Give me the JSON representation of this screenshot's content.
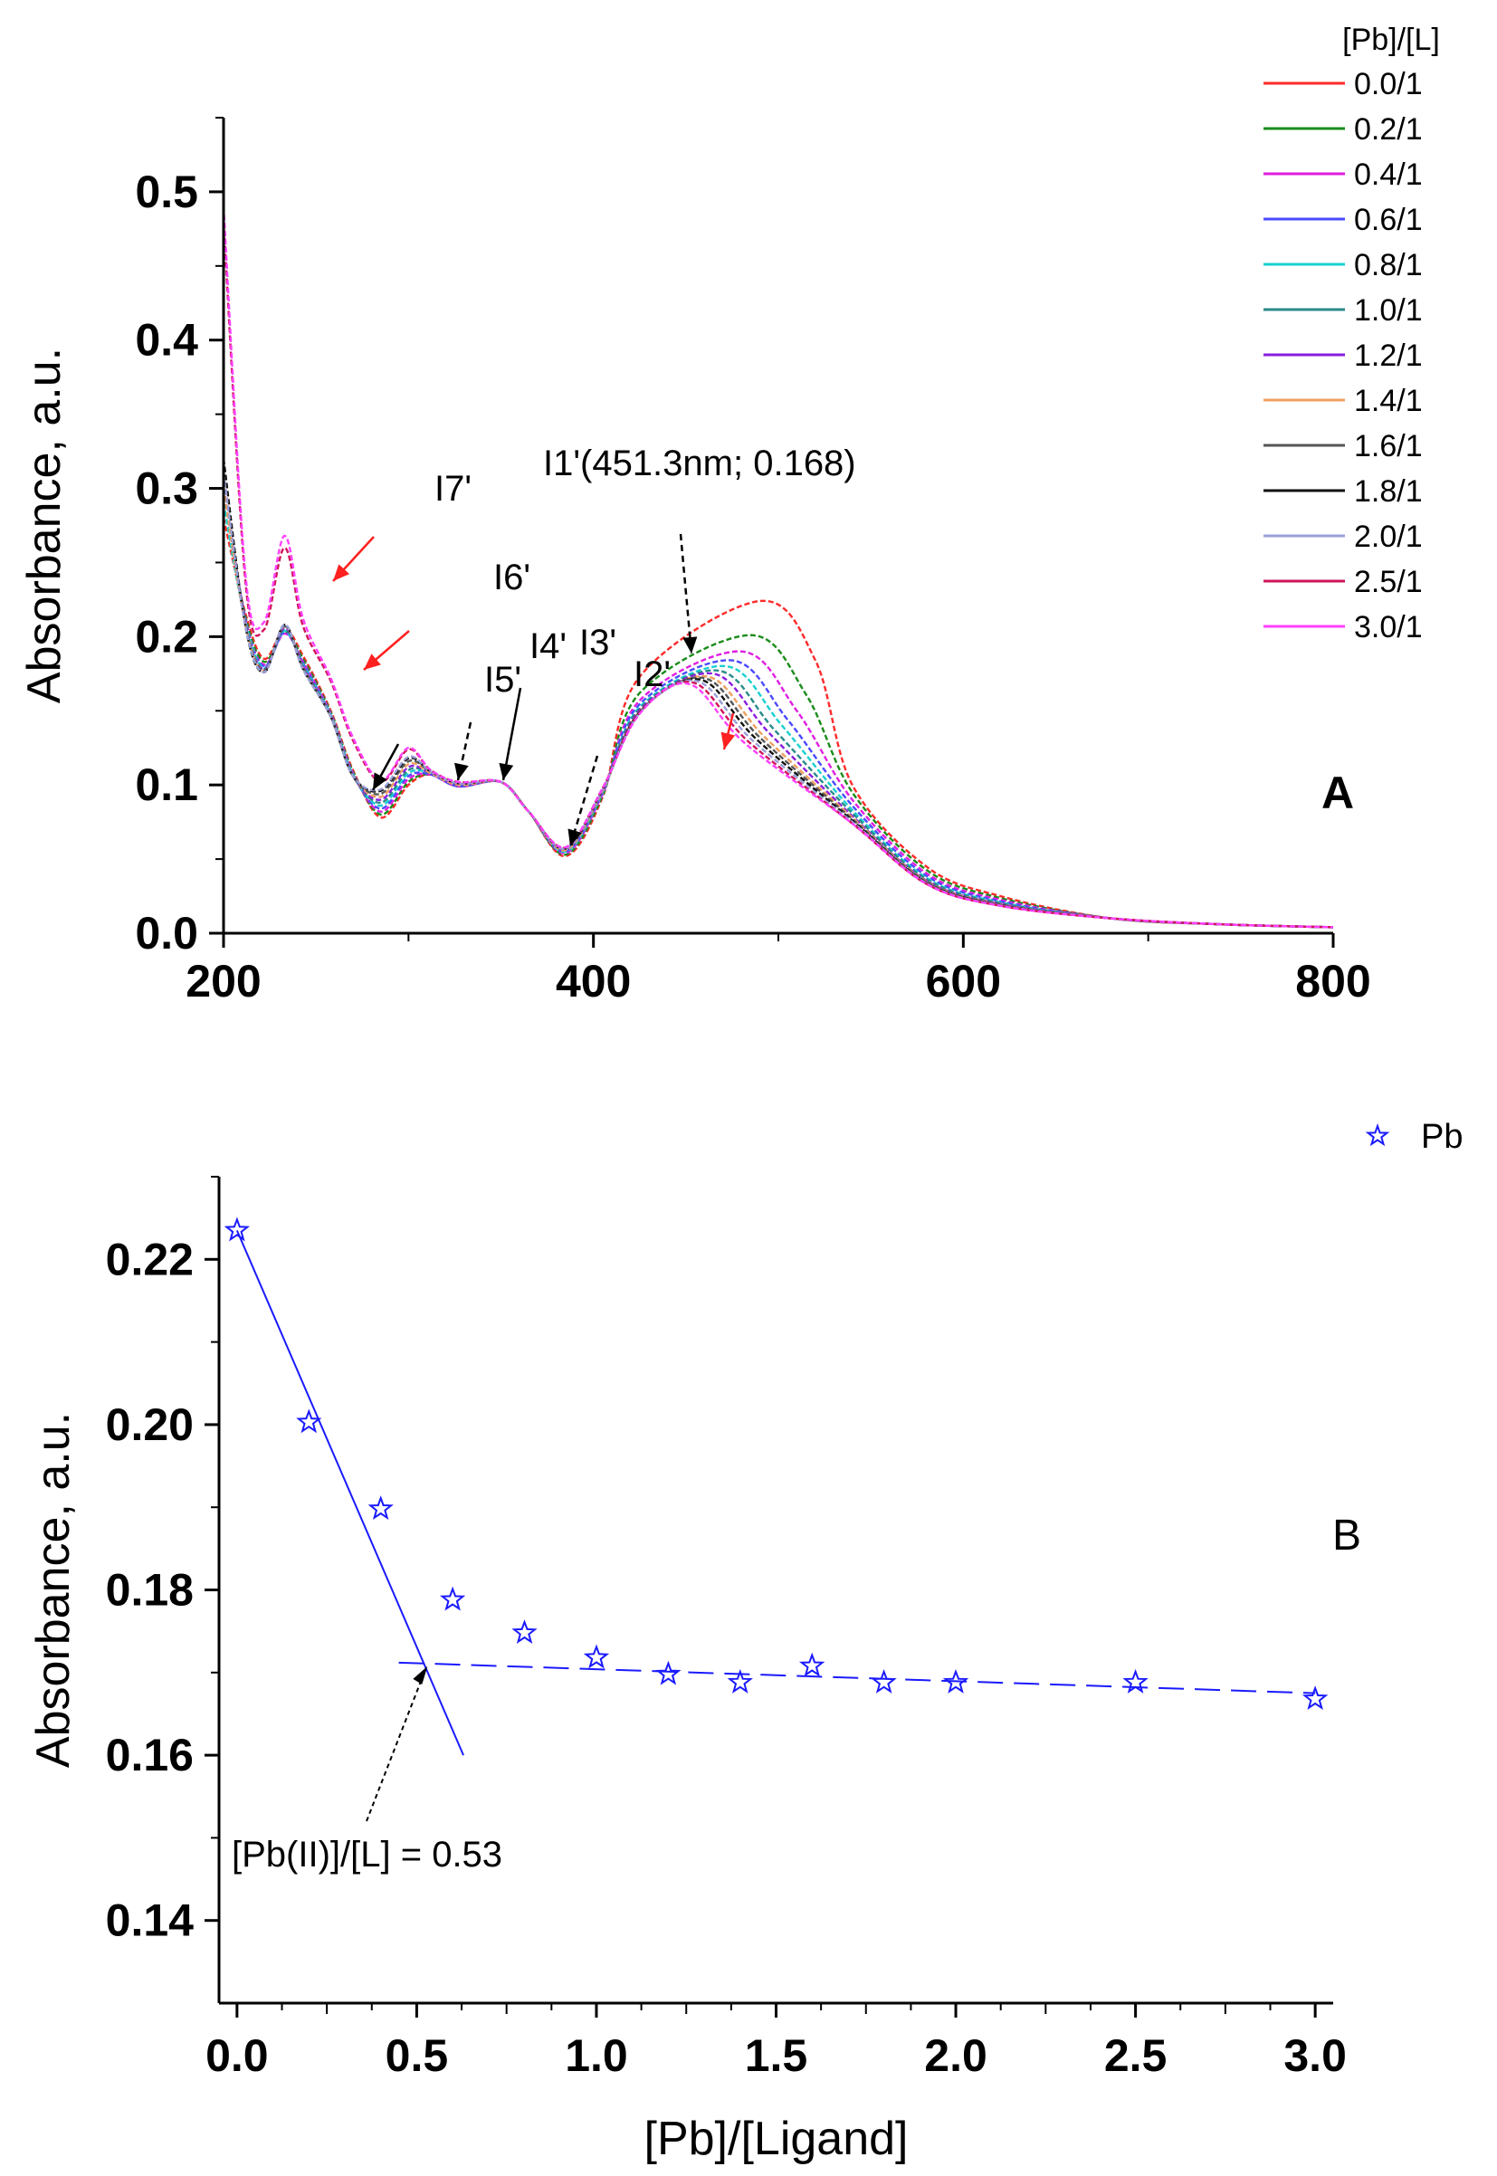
{
  "chart_data": [
    {
      "type": "line",
      "panel_label": "A",
      "xlabel": "",
      "ylabel": "Absorbance, a.u.",
      "xlim": [
        200,
        800
      ],
      "ylim": [
        0.0,
        0.55
      ],
      "xticks": [
        "200",
        "400",
        "600",
        "800"
      ],
      "yticks": [
        "0.0",
        "0.1",
        "0.2",
        "0.3",
        "0.4",
        "0.5"
      ],
      "legend_title": "[Pb]/[L]",
      "legend_position": "top-right",
      "series": [
        {
          "name": "0.0/1",
          "color": "#ff2a2a",
          "y200": 0.28,
          "dip1": 0.185,
          "peak1": 0.205,
          "shoulder": 0.15,
          "min1": 0.078,
          "p310": 0.107,
          "p350": 0.102,
          "min2": 0.052,
          "peak_x": 490,
          "peak_y": 0.224,
          "tail": 0.1
        },
        {
          "name": "0.2/1",
          "color": "#1a8c1a",
          "y200": 0.29,
          "dip1": 0.183,
          "peak1": 0.203,
          "shoulder": 0.149,
          "min1": 0.08,
          "p310": 0.107,
          "p350": 0.102,
          "min2": 0.053,
          "peak_x": 485,
          "peak_y": 0.201,
          "tail": 0.095
        },
        {
          "name": "0.4/1",
          "color": "#e01ee0",
          "y200": 0.3,
          "dip1": 0.181,
          "peak1": 0.202,
          "shoulder": 0.148,
          "min1": 0.082,
          "p310": 0.107,
          "p350": 0.102,
          "min2": 0.054,
          "peak_x": 480,
          "peak_y": 0.19,
          "tail": 0.09
        },
        {
          "name": "0.6/1",
          "color": "#4a4aff",
          "y200": 0.3,
          "dip1": 0.18,
          "peak1": 0.203,
          "shoulder": 0.147,
          "min1": 0.084,
          "p310": 0.107,
          "p350": 0.102,
          "min2": 0.055,
          "peak_x": 475,
          "peak_y": 0.184,
          "tail": 0.086
        },
        {
          "name": "0.8/1",
          "color": "#19d0d0",
          "y200": 0.29,
          "dip1": 0.179,
          "peak1": 0.204,
          "shoulder": 0.147,
          "min1": 0.086,
          "p310": 0.108,
          "p350": 0.102,
          "min2": 0.055,
          "peak_x": 472,
          "peak_y": 0.18,
          "tail": 0.083
        },
        {
          "name": "1.0/1",
          "color": "#2a8a8a",
          "y200": 0.3,
          "dip1": 0.178,
          "peak1": 0.205,
          "shoulder": 0.146,
          "min1": 0.088,
          "p310": 0.108,
          "p350": 0.102,
          "min2": 0.056,
          "peak_x": 468,
          "peak_y": 0.177,
          "tail": 0.081
        },
        {
          "name": "1.2/1",
          "color": "#8a1ee0",
          "y200": 0.31,
          "dip1": 0.178,
          "peak1": 0.206,
          "shoulder": 0.146,
          "min1": 0.09,
          "p310": 0.108,
          "p350": 0.102,
          "min2": 0.056,
          "peak_x": 465,
          "peak_y": 0.175,
          "tail": 0.079
        },
        {
          "name": "1.4/1",
          "color": "#f0a060",
          "y200": 0.3,
          "dip1": 0.177,
          "peak1": 0.207,
          "shoulder": 0.146,
          "min1": 0.092,
          "p310": 0.108,
          "p350": 0.102,
          "min2": 0.056,
          "peak_x": 462,
          "peak_y": 0.173,
          "tail": 0.078
        },
        {
          "name": "1.6/1",
          "color": "#555555",
          "y200": 0.31,
          "dip1": 0.177,
          "peak1": 0.207,
          "shoulder": 0.146,
          "min1": 0.094,
          "p310": 0.109,
          "p350": 0.102,
          "min2": 0.057,
          "peak_x": 460,
          "peak_y": 0.172,
          "tail": 0.077
        },
        {
          "name": "1.8/1",
          "color": "#111111",
          "y200": 0.32,
          "dip1": 0.176,
          "peak1": 0.208,
          "shoulder": 0.146,
          "min1": 0.096,
          "p310": 0.109,
          "p350": 0.102,
          "min2": 0.057,
          "peak_x": 458,
          "peak_y": 0.171,
          "tail": 0.076
        },
        {
          "name": "2.0/1",
          "color": "#9aa0d8",
          "y200": 0.31,
          "dip1": 0.176,
          "peak1": 0.208,
          "shoulder": 0.146,
          "min1": 0.097,
          "p310": 0.109,
          "p350": 0.102,
          "min2": 0.057,
          "peak_x": 456,
          "peak_y": 0.17,
          "tail": 0.075
        },
        {
          "name": "2.5/1",
          "color": "#d0145a",
          "y200": 0.48,
          "dip1": 0.205,
          "peak1": 0.26,
          "shoulder": 0.17,
          "min1": 0.102,
          "p310": 0.11,
          "p350": 0.102,
          "min2": 0.058,
          "peak_x": 454,
          "peak_y": 0.169,
          "tail": 0.074
        },
        {
          "name": "3.0/1",
          "color": "#ff40ff",
          "y200": 0.49,
          "dip1": 0.21,
          "peak1": 0.268,
          "shoulder": 0.172,
          "min1": 0.103,
          "p310": 0.11,
          "p350": 0.102,
          "min2": 0.058,
          "peak_x": 452,
          "peak_y": 0.168,
          "tail": 0.074
        }
      ],
      "annotations": [
        {
          "text": "I1'(451.3nm; 0.168)",
          "x": 451.3,
          "y": 0.168
        },
        {
          "text": "I2'",
          "x": 440,
          "y": 0.168
        },
        {
          "text": "I3'",
          "x": 390,
          "y": 0.058
        },
        {
          "text": "I4'",
          "x": 352,
          "y": 0.103
        },
        {
          "text": "I5'",
          "x": 330,
          "y": 0.1
        },
        {
          "text": "I6'",
          "x": 290,
          "y": 0.095
        },
        {
          "text": "I7'",
          "x": 278,
          "y": 0.103
        }
      ]
    },
    {
      "type": "scatter",
      "panel_label": "B",
      "xlabel": "[Pb]/[Ligand]",
      "ylabel": "Absorbance, a.u.",
      "xlim": [
        -0.05,
        3.05
      ],
      "ylim": [
        0.13,
        0.23
      ],
      "xticks": [
        "0.0",
        "0.5",
        "1.0",
        "1.5",
        "2.0",
        "2.5",
        "3.0"
      ],
      "yticks": [
        "0.14",
        "0.16",
        "0.18",
        "0.20",
        "0.22"
      ],
      "legend_position": "top-right",
      "series": [
        {
          "name": "Pb",
          "color": "#1a1aff",
          "marker": "star",
          "x": [
            0.0,
            0.2,
            0.4,
            0.6,
            0.8,
            1.0,
            1.2,
            1.4,
            1.6,
            1.8,
            2.0,
            2.5,
            3.0
          ],
          "y": [
            0.2235,
            0.2003,
            0.1898,
            0.1788,
            0.1748,
            0.1718,
            0.1698,
            0.1688,
            0.1708,
            0.1688,
            0.1688,
            0.1688,
            0.1668
          ]
        }
      ],
      "fit_lines": [
        {
          "x": [
            0.0,
            0.63
          ],
          "y": [
            0.2235,
            0.16
          ]
        },
        {
          "x": [
            0.45,
            3.0
          ],
          "y": [
            0.1712,
            0.1675
          ]
        }
      ],
      "annotation": {
        "text": "[Pb(II)]/[L] = 0.53",
        "x": 0.53,
        "y": 0.1712
      }
    }
  ]
}
